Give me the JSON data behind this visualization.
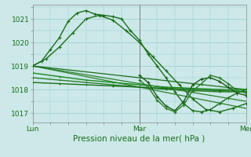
{
  "title": "Pression niveau de la mer( hPa )",
  "bg_color": "#cce8e8",
  "grid_color": "#99cccc",
  "xlim": [
    0,
    48
  ],
  "ylim": [
    1016.6,
    1021.6
  ],
  "yticks": [
    1017,
    1018,
    1019,
    1020,
    1021
  ],
  "xtick_positions": [
    0,
    24,
    48
  ],
  "xtick_labels": [
    "Lun",
    "Mar",
    "Mer"
  ],
  "series": [
    {
      "x": [
        0,
        2,
        4,
        6,
        8,
        10,
        12,
        14,
        16,
        18,
        20,
        22,
        24,
        26,
        28,
        30,
        32,
        34,
        36,
        38,
        40,
        42,
        44,
        46,
        48
      ],
      "y": [
        1019.0,
        1019.2,
        1019.7,
        1020.2,
        1020.9,
        1021.25,
        1021.35,
        1021.2,
        1021.15,
        1021.1,
        1021.0,
        1020.5,
        1020.1,
        1019.5,
        1019.0,
        1018.5,
        1017.9,
        1017.4,
        1017.1,
        1017.05,
        1017.15,
        1017.4,
        1017.65,
        1017.85,
        1018.0
      ],
      "color": "#1a6e1a",
      "lw": 1.0,
      "marker": "+",
      "ms": 3,
      "mew": 0.8
    },
    {
      "x": [
        0,
        3,
        6,
        9,
        12,
        15,
        18,
        21,
        24,
        27,
        30,
        33,
        36,
        39,
        42,
        45,
        48
      ],
      "y": [
        1019.0,
        1019.3,
        1019.8,
        1020.4,
        1021.0,
        1021.15,
        1020.95,
        1020.5,
        1020.0,
        1019.4,
        1018.8,
        1018.2,
        1017.6,
        1017.15,
        1017.05,
        1017.2,
        1017.4
      ],
      "color": "#1a6e1a",
      "lw": 1.0,
      "marker": "+",
      "ms": 3,
      "mew": 0.8
    },
    {
      "x": [
        0,
        48
      ],
      "y": [
        1019.0,
        1017.2
      ],
      "color": "#2a802a",
      "lw": 0.9,
      "marker": null,
      "ms": 0,
      "mew": 0
    },
    {
      "x": [
        0,
        48
      ],
      "y": [
        1019.0,
        1017.5
      ],
      "color": "#2a802a",
      "lw": 0.9,
      "marker": null,
      "ms": 0,
      "mew": 0
    },
    {
      "x": [
        0,
        48
      ],
      "y": [
        1019.0,
        1018.0
      ],
      "color": "#1a6e1a",
      "lw": 0.9,
      "marker": null,
      "ms": 0,
      "mew": 0
    },
    {
      "x": [
        0,
        6,
        12,
        18,
        24,
        30,
        36,
        42,
        48
      ],
      "y": [
        1018.7,
        1018.55,
        1018.4,
        1018.3,
        1018.2,
        1018.1,
        1018.05,
        1018.0,
        1018.0
      ],
      "color": "#1a8a1a",
      "lw": 1.0,
      "marker": "+",
      "ms": 2,
      "mew": 0.7
    },
    {
      "x": [
        0,
        6,
        12,
        18,
        24,
        30,
        36,
        42,
        48
      ],
      "y": [
        1018.5,
        1018.4,
        1018.3,
        1018.2,
        1018.1,
        1018.0,
        1017.95,
        1017.9,
        1017.9
      ],
      "color": "#2a802a",
      "lw": 1.0,
      "marker": "+",
      "ms": 2,
      "mew": 0.7
    },
    {
      "x": [
        0,
        6,
        12,
        18,
        24,
        30,
        36,
        42,
        48
      ],
      "y": [
        1018.3,
        1018.25,
        1018.2,
        1018.15,
        1018.1,
        1018.05,
        1018.0,
        1017.95,
        1017.92
      ],
      "color": "#1a6e1a",
      "lw": 1.0,
      "marker": "+",
      "ms": 2,
      "mew": 0.7
    },
    {
      "x": [
        24,
        26,
        28,
        30,
        32,
        34,
        36,
        38,
        40,
        42,
        44,
        46,
        48
      ],
      "y": [
        1018.6,
        1018.3,
        1017.7,
        1017.3,
        1017.1,
        1017.5,
        1018.2,
        1018.45,
        1018.5,
        1018.35,
        1018.1,
        1017.85,
        1017.75
      ],
      "color": "#1a5c1a",
      "lw": 1.0,
      "marker": "+",
      "ms": 3,
      "mew": 0.8
    },
    {
      "x": [
        24,
        26,
        28,
        30,
        32,
        34,
        36,
        38,
        40,
        42,
        44,
        46,
        48
      ],
      "y": [
        1018.4,
        1018.1,
        1017.55,
        1017.2,
        1017.05,
        1017.35,
        1017.95,
        1018.25,
        1018.6,
        1018.5,
        1018.25,
        1017.95,
        1017.85
      ],
      "color": "#2a802a",
      "lw": 1.0,
      "marker": "+",
      "ms": 3,
      "mew": 0.8
    }
  ]
}
